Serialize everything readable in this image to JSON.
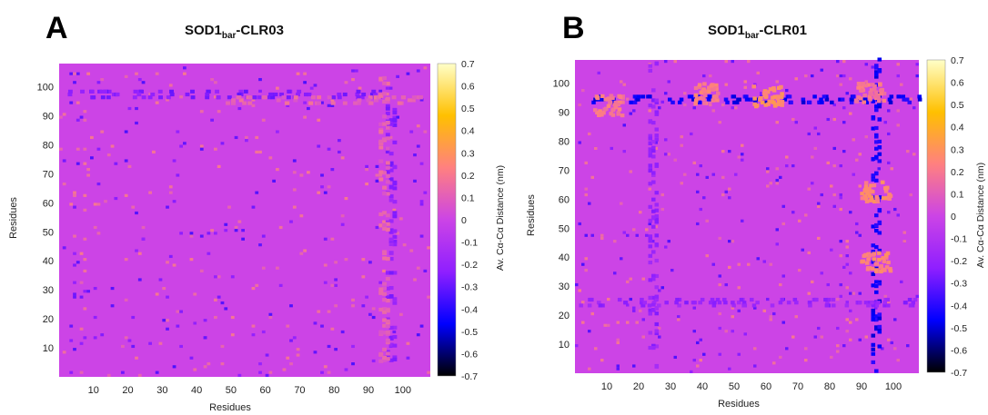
{
  "chart_data": [
    {
      "type": "heatmap",
      "panel_label": "A",
      "title": {
        "prefix": "SOD1",
        "subscript": "bar",
        "suffix": "-CLR03"
      },
      "xlabel": "Residues",
      "ylabel": "Residues",
      "x_ticks": [
        10,
        20,
        30,
        40,
        50,
        60,
        70,
        80,
        90,
        100
      ],
      "y_ticks": [
        10,
        20,
        30,
        40,
        50,
        60,
        70,
        80,
        90,
        100
      ],
      "xlim": [
        0,
        108
      ],
      "ylim": [
        0,
        108
      ],
      "background_value": 0,
      "colorbar": {
        "label": "Av. Cα-Cα Distance (nm)",
        "range": [
          -0.7,
          0.7
        ],
        "ticks": [
          0.7,
          0.6,
          0.5,
          0.4,
          0.3,
          0.2,
          0.1,
          0,
          -0.1,
          -0.2,
          -0.3,
          -0.4,
          -0.5,
          -0.6,
          -0.7
        ],
        "tick_labels": [
          "0.7",
          "0.6",
          "0.5",
          "0.4",
          "0.3",
          "0.2",
          "0.1",
          "0",
          "-0.1",
          "-0.2",
          "-0.3",
          "-0.4",
          "-0.5",
          "-0.6",
          "-0.7"
        ],
        "colormap": [
          "#000000",
          "#0000ff",
          "#8f1fff",
          "#cc44e6",
          "#ff8080",
          "#ffc000",
          "#ffffc8"
        ]
      },
      "features": [
        {
          "orientation": "horizontal",
          "residue": 97,
          "from": 2,
          "to": 92,
          "value": -0.25
        },
        {
          "orientation": "horizontal",
          "residue": 95,
          "from": 45,
          "to": 105,
          "value": 0.12
        },
        {
          "orientation": "vertical",
          "residue": 96,
          "from": 5,
          "to": 95,
          "value": -0.22
        },
        {
          "orientation": "vertical",
          "residue": 94,
          "from": 5,
          "to": 105,
          "value": 0.12
        }
      ]
    },
    {
      "type": "heatmap",
      "panel_label": "B",
      "title": {
        "prefix": "SOD1",
        "subscript": "bar",
        "suffix": "-CLR01"
      },
      "xlabel": "Residues",
      "ylabel": "Residues",
      "x_ticks": [
        10,
        20,
        30,
        40,
        50,
        60,
        70,
        80,
        90,
        100
      ],
      "y_ticks": [
        10,
        20,
        30,
        40,
        50,
        60,
        70,
        80,
        90,
        100
      ],
      "xlim": [
        0,
        108
      ],
      "ylim": [
        0,
        108
      ],
      "background_value": 0,
      "colorbar": {
        "label": "Av. Cα-Cα Distance (nm)",
        "range": [
          -0.7,
          0.7
        ],
        "ticks": [
          0.7,
          0.6,
          0.5,
          0.4,
          0.3,
          0.2,
          0.1,
          0,
          -0.1,
          -0.2,
          -0.3,
          -0.4,
          -0.5,
          -0.6,
          -0.7
        ],
        "tick_labels": [
          "0.7",
          "0.6",
          "0.5",
          "0.4",
          "0.3",
          "0.2",
          "0.1",
          "0",
          "-0.1",
          "-0.2",
          "-0.3",
          "-0.4",
          "-0.5",
          "-0.6",
          "-0.7"
        ],
        "colormap": [
          "#000000",
          "#0000ff",
          "#8f1fff",
          "#cc44e6",
          "#ff8080",
          "#ffc000",
          "#ffffc8"
        ]
      },
      "features": [
        {
          "orientation": "horizontal",
          "residue": 94,
          "from": 0,
          "to": 108,
          "value": -0.45
        },
        {
          "orientation": "vertical",
          "residue": 94,
          "from": 0,
          "to": 108,
          "value": -0.45
        },
        {
          "orientation": "horizontal",
          "residue": 24,
          "from": 0,
          "to": 108,
          "value": -0.2
        },
        {
          "orientation": "vertical",
          "residue": 24,
          "from": 0,
          "to": 108,
          "value": -0.2
        }
      ],
      "hotspots": [
        {
          "x": 10,
          "y": 92,
          "value": 0.2
        },
        {
          "x": 40,
          "y": 96,
          "value": 0.22
        },
        {
          "x": 60,
          "y": 95,
          "value": 0.28
        },
        {
          "x": 94,
          "y": 62,
          "value": 0.25
        },
        {
          "x": 94,
          "y": 38,
          "value": 0.25
        },
        {
          "x": 92,
          "y": 96,
          "value": 0.2
        }
      ]
    }
  ]
}
